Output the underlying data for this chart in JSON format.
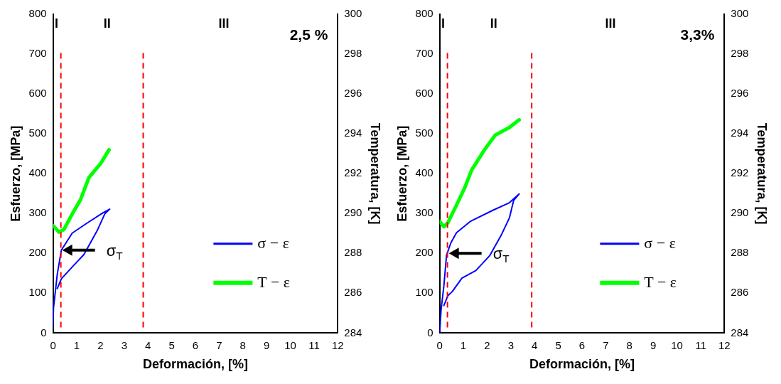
{
  "chart_data": [
    {
      "type": "line",
      "xlabel": "Deformación, [%]",
      "ylabel": "Esfuerzo, [MPa]",
      "y2label": "Temperatura, [K]",
      "xlim": [
        0,
        12
      ],
      "xticks": [
        0,
        1,
        2,
        3,
        4,
        5,
        6,
        7,
        8,
        9,
        10,
        11,
        12
      ],
      "ylim": [
        0,
        800
      ],
      "yticks": [
        0,
        100,
        200,
        300,
        400,
        500,
        600,
        700,
        800
      ],
      "y2lim": [
        284,
        300
      ],
      "y2ticks": [
        284,
        286,
        288,
        290,
        292,
        294,
        296,
        298,
        300
      ],
      "grid": false,
      "legend": "right",
      "marker": "none",
      "series": [
        {
          "name": "σ − ε",
          "color": "#0000ff",
          "x": [
            0,
            0.02,
            0.18,
            0.35,
            0.81,
            1.41,
            2.11,
            2.39,
            2.18,
            1.86,
            1.3,
            0.81,
            0.35,
            0.18
          ],
          "values": [
            16,
            63,
            148,
            208,
            251,
            275,
            302,
            311,
            299,
            257,
            197,
            166,
            136,
            112
          ]
        },
        {
          "name": "T − ε",
          "color": "#00ff00",
          "axis": "y2",
          "x": [
            0,
            0.25,
            0.46,
            0.81,
            1.16,
            1.51,
            2.0,
            2.36
          ],
          "values": [
            289.4,
            289.07,
            289.2,
            289.98,
            290.7,
            291.8,
            292.5,
            293.2
          ]
        }
      ],
      "ref_lines": [
        {
          "axis": "x",
          "value": 0.33,
          "color": "#ff0000",
          "line_style": "dashed"
        },
        {
          "axis": "x",
          "value": 3.8,
          "color": "#ff0000",
          "line_style": "dashed"
        }
      ],
      "annotations": [
        "2,5 %",
        "I",
        "II",
        "III",
        {
          "text": "σ$_{T}$",
          "x": 0.33,
          "y": 208
        }
      ]
    },
    {
      "type": "line",
      "xlabel": "Deformación, [%]",
      "ylabel": "Esfuerzo, [MPa]",
      "y2label": "Temperatura, [K]",
      "xlim": [
        0,
        12
      ],
      "xticks": [
        0,
        1,
        2,
        3,
        4,
        5,
        6,
        7,
        8,
        9,
        10,
        11,
        12
      ],
      "ylim": [
        0,
        800
      ],
      "yticks": [
        0,
        100,
        200,
        300,
        400,
        500,
        600,
        700,
        800
      ],
      "y2lim": [
        284,
        300
      ],
      "y2ticks": [
        284,
        286,
        288,
        290,
        292,
        294,
        296,
        298,
        300
      ],
      "grid": false,
      "legend": "right",
      "marker": "none",
      "series": [
        {
          "name": "σ − ε",
          "color": "#0000ff",
          "x": [
            0,
            0.06,
            0.18,
            0.29,
            0.47,
            0.71,
            1.29,
            2.24,
            2.94,
            3.35,
            3.12,
            2.94,
            2.59,
            2.12,
            1.53,
            0.94,
            0.53,
            0.35,
            0.18
          ],
          "values": [
            0,
            57,
            119,
            195,
            226,
            252,
            280,
            308,
            327,
            349,
            333,
            289,
            245,
            195,
            157,
            138,
            104,
            94,
            69
          ]
        },
        {
          "name": "T − ε",
          "color": "#00ff00",
          "axis": "y2",
          "x": [
            0,
            0.18,
            0.35,
            0.71,
            1.06,
            1.35,
            1.88,
            2.35,
            2.94,
            3.35
          ],
          "values": [
            289.6,
            289.34,
            289.54,
            290.42,
            291.3,
            292.18,
            293.18,
            293.94,
            294.32,
            294.7
          ]
        }
      ],
      "ref_lines": [
        {
          "axis": "x",
          "value": 0.33,
          "color": "#ff0000",
          "line_style": "dashed"
        },
        {
          "axis": "x",
          "value": 3.88,
          "color": "#ff0000",
          "line_style": "dashed"
        }
      ],
      "annotations": [
        "3,3%",
        "I",
        "II",
        "III",
        {
          "text": "σ$_{T}$",
          "x": 0.33,
          "y": 200
        }
      ]
    }
  ]
}
